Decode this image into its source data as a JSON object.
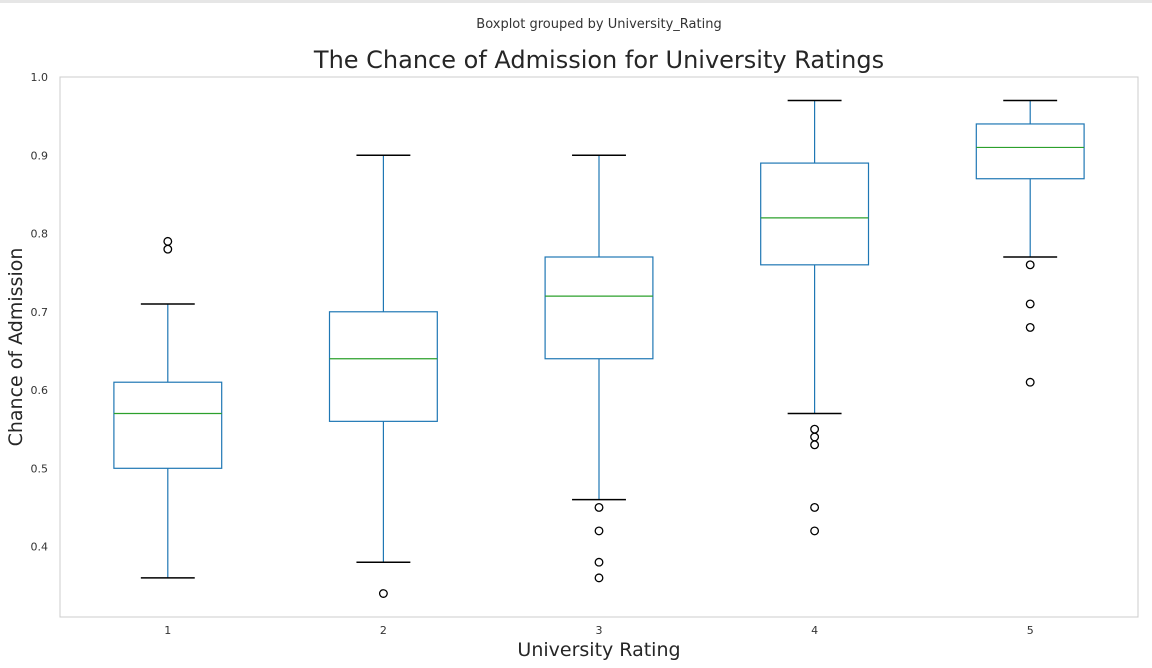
{
  "chart_data": {
    "type": "boxplot",
    "suptitle": "Boxplot grouped by University_Rating",
    "title": "The Chance of Admission for University Ratings",
    "xlabel": "University Rating",
    "ylabel": "Chance of Admission",
    "categories": [
      "1",
      "2",
      "3",
      "4",
      "5"
    ],
    "ylim": [
      0.31,
      1.0
    ],
    "yticks": [
      0.4,
      0.5,
      0.6,
      0.7,
      0.8,
      0.9,
      1.0
    ],
    "ytick_labels": [
      "0.4",
      "0.5",
      "0.6",
      "0.7",
      "0.8",
      "0.9",
      "1.0"
    ],
    "grid": false,
    "colors": {
      "box": "#1f77b4",
      "median": "#2ca02c",
      "outlier": "#000000",
      "frame": "#cccccc"
    },
    "boxes": [
      {
        "category": "1",
        "whisker_low": 0.36,
        "q1": 0.5,
        "median": 0.57,
        "q3": 0.61,
        "whisker_high": 0.71,
        "outliers": [
          0.78,
          0.79
        ]
      },
      {
        "category": "2",
        "whisker_low": 0.38,
        "q1": 0.56,
        "median": 0.64,
        "q3": 0.7,
        "whisker_high": 0.9,
        "outliers": [
          0.34
        ]
      },
      {
        "category": "3",
        "whisker_low": 0.46,
        "q1": 0.64,
        "median": 0.72,
        "q3": 0.77,
        "whisker_high": 0.9,
        "outliers": [
          0.36,
          0.38,
          0.42,
          0.45
        ]
      },
      {
        "category": "4",
        "whisker_low": 0.57,
        "q1": 0.76,
        "median": 0.82,
        "q3": 0.89,
        "whisker_high": 0.97,
        "outliers": [
          0.42,
          0.45,
          0.53,
          0.54,
          0.55
        ]
      },
      {
        "category": "5",
        "whisker_low": 0.77,
        "q1": 0.87,
        "median": 0.91,
        "q3": 0.94,
        "whisker_high": 0.97,
        "outliers": [
          0.61,
          0.68,
          0.71,
          0.76
        ]
      }
    ]
  }
}
